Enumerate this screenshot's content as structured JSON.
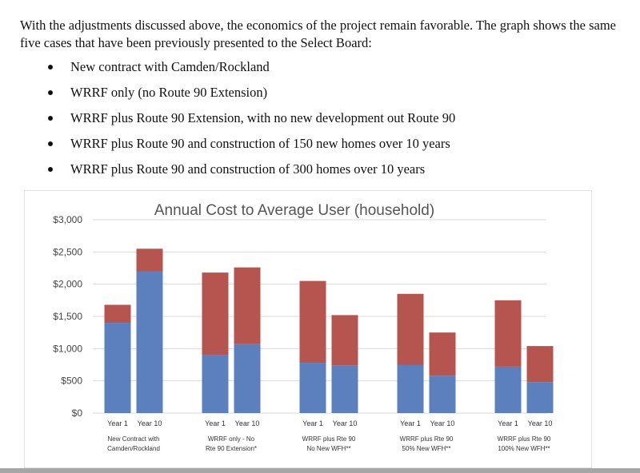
{
  "document": {
    "intro": "With the adjustments discussed above, the economics of the project remain favorable. The graph shows the same five cases that have been previously presented to the Select Board:",
    "bullets": [
      "New contract with Camden/Rockland",
      "WRRF only (no Route 90 Extension)",
      "WRRF plus Route 90 Extension, with no new development out Route 90",
      "WRRF plus Route 90 and construction of 150 new homes over 10 years",
      "WRRF plus Route 90 and construction of 300 homes over 10 years"
    ]
  },
  "chart_data": {
    "type": "bar",
    "stacked": true,
    "title": "Annual Cost to Average User (household)",
    "ylim": [
      0,
      3000
    ],
    "yticks": [
      "$0",
      "$500",
      "$1,000",
      "$1,500",
      "$2,000",
      "$2,500",
      "$3,000"
    ],
    "grid": true,
    "colors": {
      "base": "#5b80bd",
      "top": "#b65450"
    },
    "groups": [
      {
        "label": [
          "New Contract with",
          "Camden/Rockland"
        ],
        "bars": [
          {
            "label": "Year 1",
            "base": 1400,
            "top": 280
          },
          {
            "label": "Year 10",
            "base": 2200,
            "top": 350
          }
        ]
      },
      {
        "label": [
          "WRRF only - No",
          "Rte 90 Extension*"
        ],
        "bars": [
          {
            "label": "Year 1",
            "base": 900,
            "top": 1280
          },
          {
            "label": "Year 10",
            "base": 1070,
            "top": 1190
          }
        ]
      },
      {
        "label": [
          "WRRF plus Rte 90",
          "No New WFH**"
        ],
        "bars": [
          {
            "label": "Year 1",
            "base": 780,
            "top": 1270
          },
          {
            "label": "Year 10",
            "base": 740,
            "top": 780
          }
        ]
      },
      {
        "label": [
          "WRRF plus Rte 90",
          "50% New WFH**"
        ],
        "bars": [
          {
            "label": "Year 1",
            "base": 750,
            "top": 1100
          },
          {
            "label": "Year 10",
            "base": 580,
            "top": 670
          }
        ]
      },
      {
        "label": [
          "WRRF plus Rte 90",
          "100% New WFH**"
        ],
        "bars": [
          {
            "label": "Year 1",
            "base": 720,
            "top": 1030
          },
          {
            "label": "Year 10",
            "base": 480,
            "top": 560
          }
        ]
      }
    ]
  }
}
